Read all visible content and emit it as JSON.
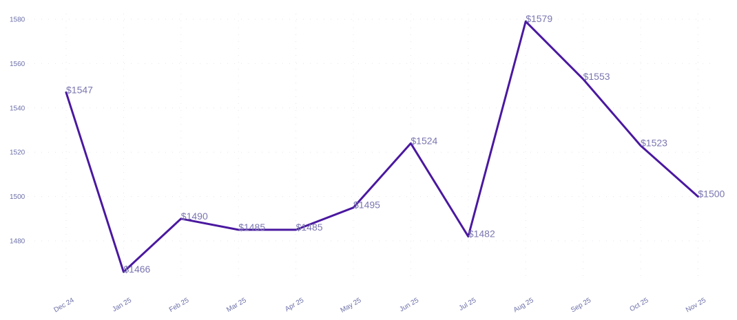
{
  "chart_data": {
    "type": "line",
    "categories": [
      "Dec 24",
      "Jan 25",
      "Feb 25",
      "Mar 25",
      "Apr 25",
      "May 25",
      "Jun 25",
      "Jul 25",
      "Aug 25",
      "Sep 25",
      "Oct 25",
      "Nov 25"
    ],
    "series": [
      {
        "values": [
          1547,
          1466,
          1490,
          1485,
          1485,
          1495,
          1524,
          1482,
          1579,
          1553,
          1523,
          1500
        ],
        "labels": [
          "$1547",
          "$1466",
          "$1490",
          "$1485",
          "$1485",
          "$1495",
          "$1524",
          "$1482",
          "$1579",
          "$1553",
          "$1523",
          "$1500"
        ]
      }
    ],
    "yticks": [
      "1480",
      "1500",
      "1520",
      "1540",
      "1560",
      "1580"
    ],
    "ylim": [
      1460,
      1580
    ],
    "grid": true,
    "legend": "none",
    "colors": {
      "line": "#4a18a0",
      "label": "#7a76b0",
      "tick": "#6b6fa8",
      "grid": "#e6e6ec"
    }
  }
}
